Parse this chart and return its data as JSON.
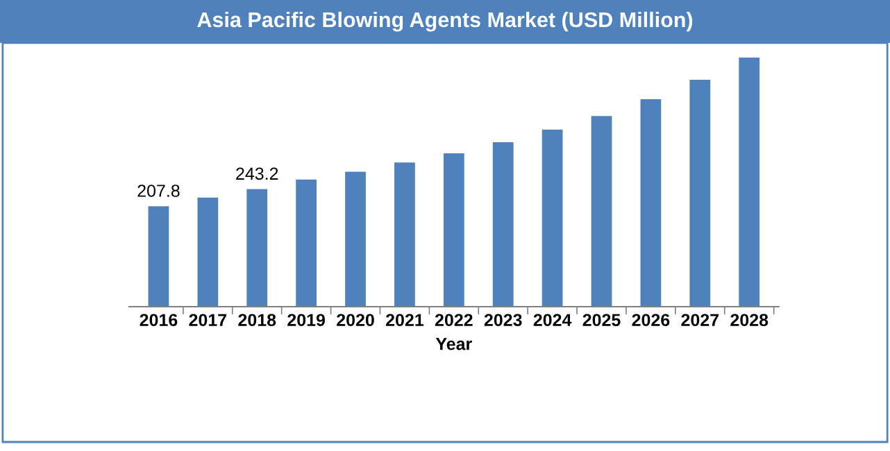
{
  "chart_data": {
    "type": "bar",
    "title": "Asia Pacific Blowing Agents Market (USD Million)",
    "xlabel": "Year",
    "categories": [
      "2016",
      "2017",
      "2018",
      "2019",
      "2020",
      "2021",
      "2022",
      "2023",
      "2024",
      "2025",
      "2026",
      "2027",
      "2028"
    ],
    "values": [
      207.8,
      225.5,
      243.2,
      263,
      279,
      298,
      317,
      340,
      366,
      394,
      429,
      469,
      515
    ],
    "value_labels": [
      "207.8",
      null,
      "243.2",
      null,
      null,
      null,
      null,
      null,
      null,
      null,
      null,
      null,
      null
    ],
    "color": "#4f81bd",
    "grid": false,
    "legend": false
  }
}
